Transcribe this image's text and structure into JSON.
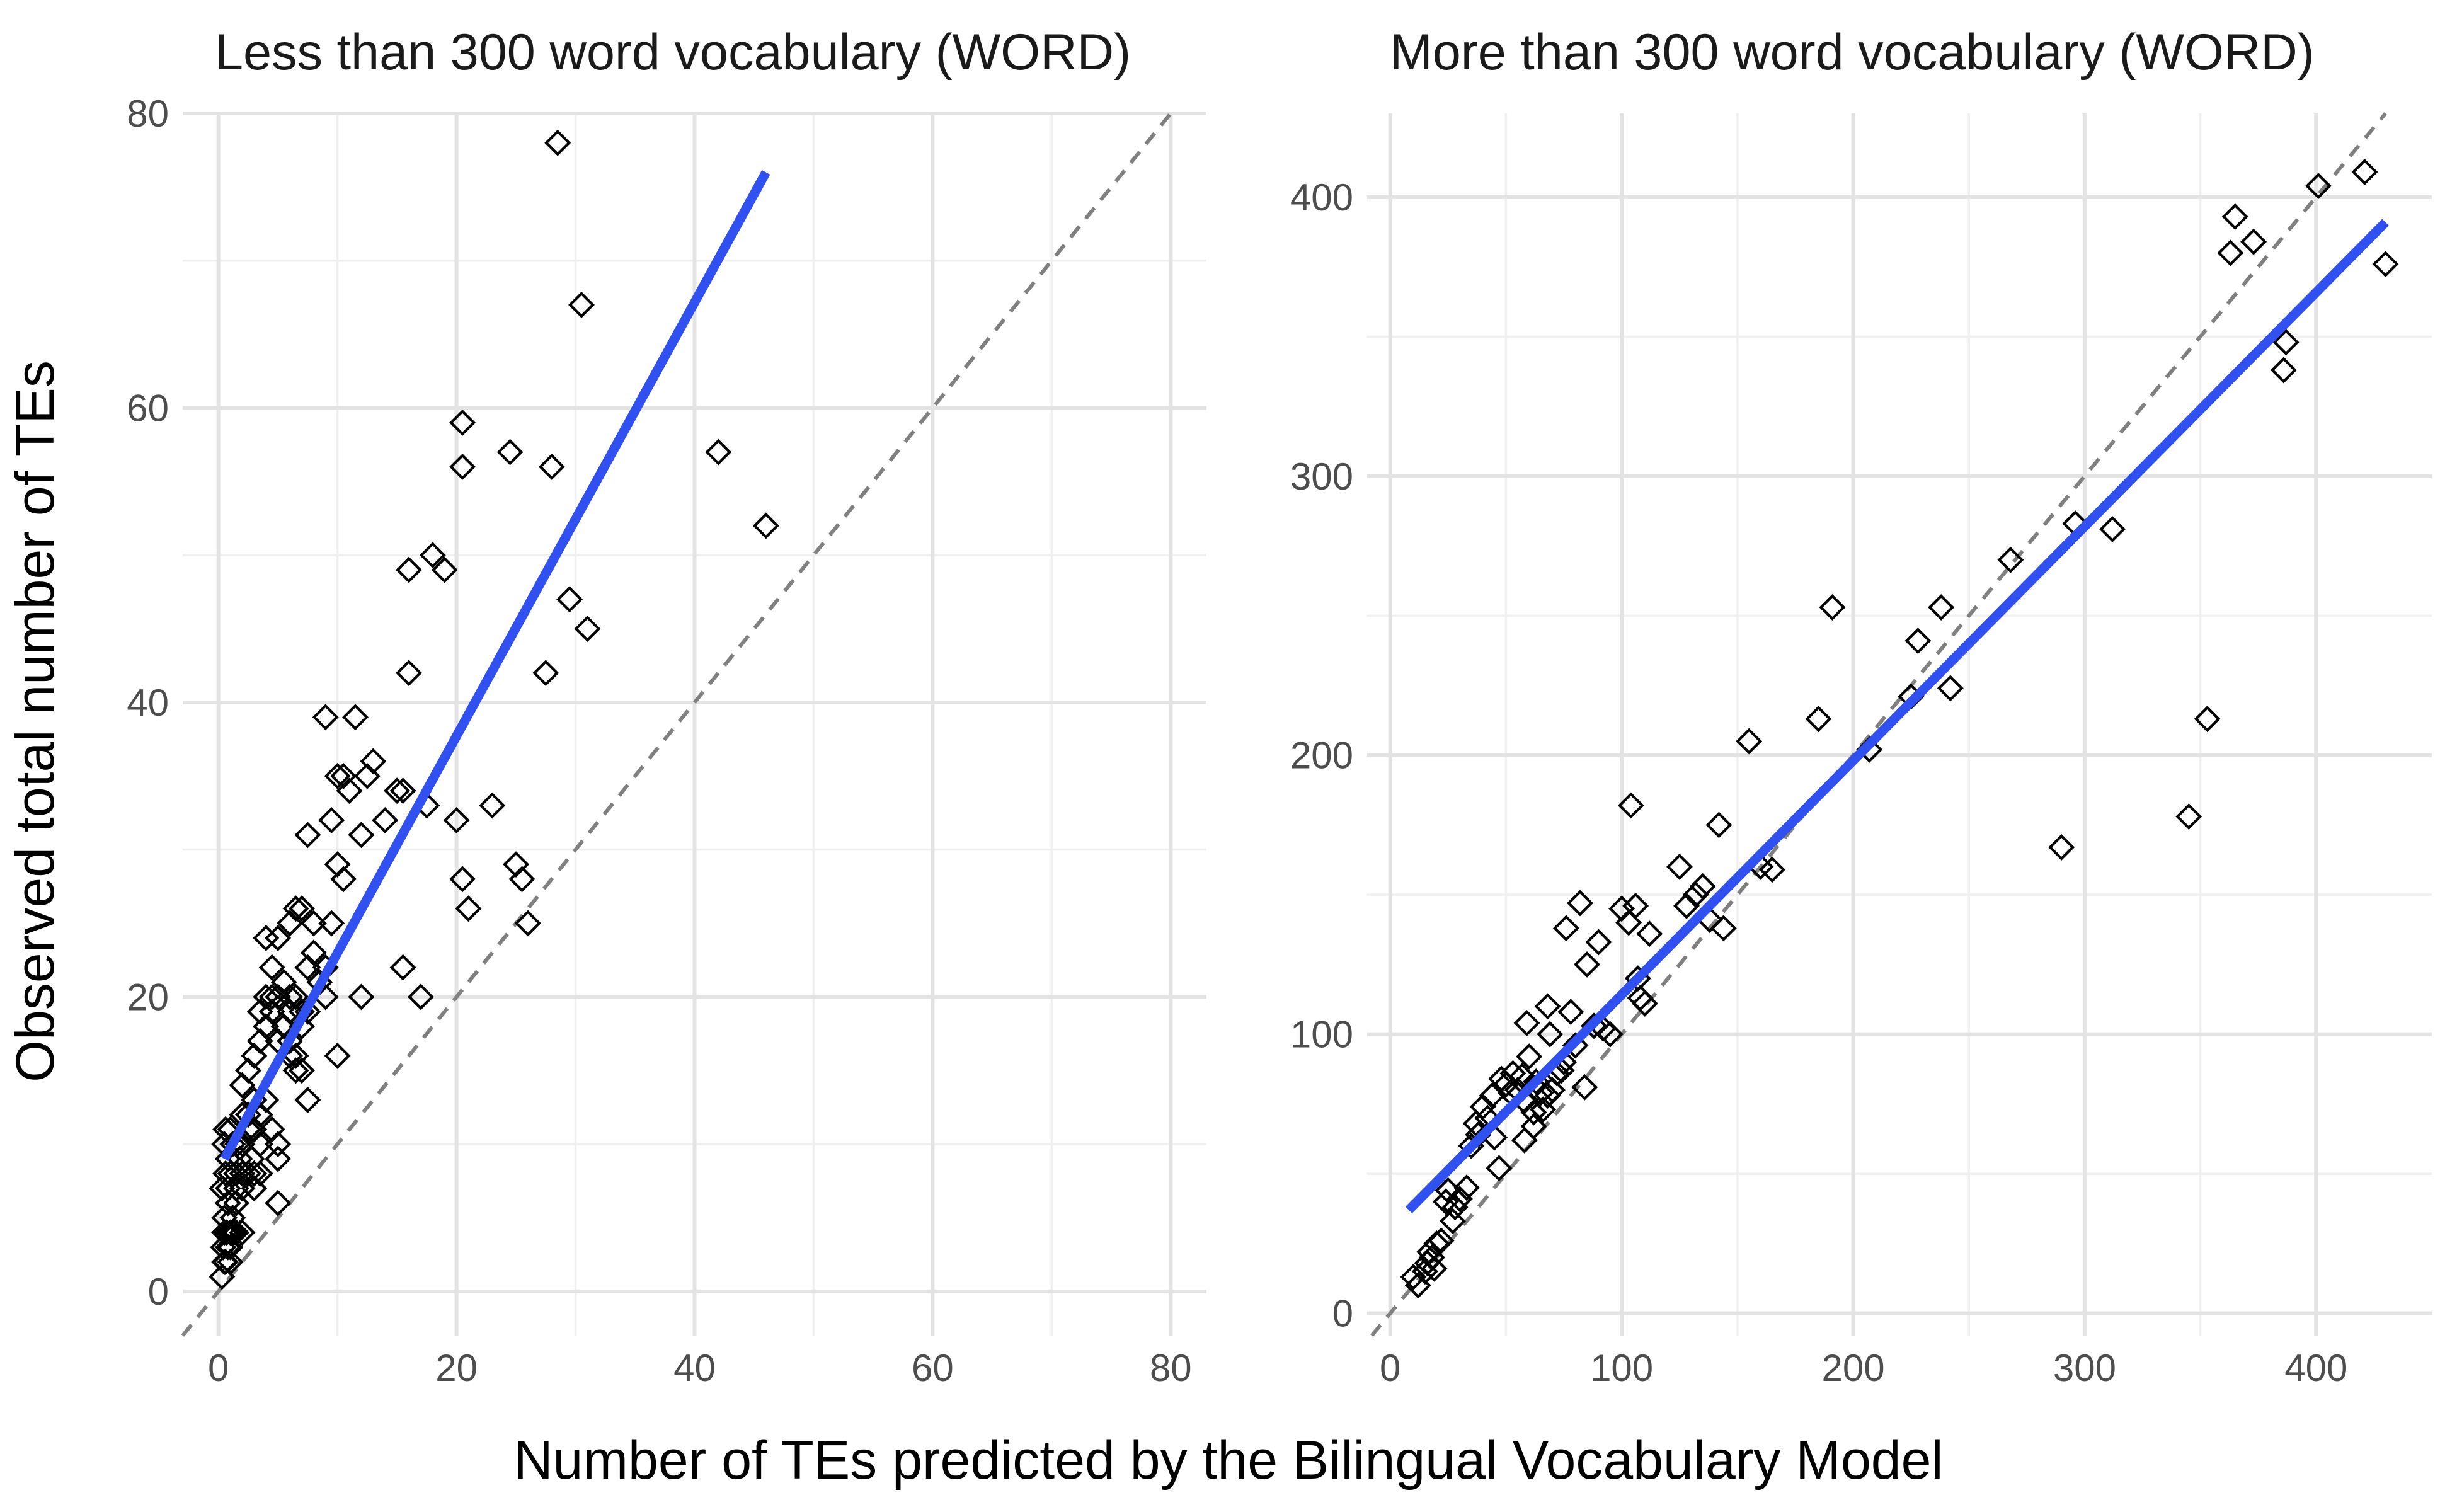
{
  "figure": {
    "x_axis_title": "Number of TEs predicted by the Bilingual Vocabulary Model",
    "y_axis_title": "Observed total number of TEs"
  },
  "colors": {
    "fit_line": "#3050f0",
    "identity_line": "#808080",
    "points": "#000000",
    "grid": "#e3e3e3"
  },
  "chart_data": [
    {
      "type": "scatter",
      "title": "Less than 300 word vocabulary (WORD)",
      "xlim": [
        -3,
        83
      ],
      "ylim": [
        -3,
        80
      ],
      "x_ticks": [
        0,
        20,
        40,
        60,
        80
      ],
      "y_ticks": [
        0,
        20,
        40,
        60,
        80
      ],
      "x_minor": [
        10,
        30,
        50,
        70
      ],
      "y_minor": [
        10,
        30,
        50,
        70
      ],
      "marker": "hollow-diamond",
      "reference_line": {
        "type": "identity",
        "style": "dashed"
      },
      "fit_line": {
        "from": [
          0.5,
          9
        ],
        "to": [
          46,
          76
        ]
      },
      "points": [
        [
          0.3,
          1
        ],
        [
          0.5,
          2
        ],
        [
          0.6,
          2
        ],
        [
          0.8,
          3
        ],
        [
          1,
          2
        ],
        [
          0.4,
          3
        ],
        [
          0.5,
          4
        ],
        [
          0.7,
          4
        ],
        [
          1,
          4
        ],
        [
          1.3,
          4
        ],
        [
          0.5,
          5
        ],
        [
          0.8,
          6
        ],
        [
          1.2,
          5
        ],
        [
          1.5,
          6
        ],
        [
          0.3,
          7
        ],
        [
          0.6,
          8
        ],
        [
          1,
          8
        ],
        [
          1.5,
          8
        ],
        [
          2,
          8
        ],
        [
          2.5,
          8
        ],
        [
          3,
          8
        ],
        [
          0.5,
          10
        ],
        [
          0.8,
          9
        ],
        [
          1.2,
          10
        ],
        [
          1.6,
          10
        ],
        [
          2,
          10
        ],
        [
          2.5,
          11
        ],
        [
          3,
          11
        ],
        [
          3.5,
          10
        ],
        [
          0.6,
          11
        ],
        [
          1,
          11
        ],
        [
          2,
          12
        ],
        [
          2.5,
          12
        ],
        [
          3,
          13
        ],
        [
          3.5,
          12
        ],
        [
          4,
          13
        ],
        [
          4.5,
          11
        ],
        [
          5,
          10
        ],
        [
          5,
          9
        ],
        [
          1.5,
          7
        ],
        [
          2,
          7
        ],
        [
          3,
          7
        ],
        [
          3.5,
          8
        ],
        [
          1,
          3
        ],
        [
          1.5,
          4
        ],
        [
          2,
          4
        ],
        [
          0.8,
          7
        ],
        [
          1.8,
          9
        ],
        [
          2.8,
          9
        ],
        [
          2,
          14
        ],
        [
          3,
          16
        ],
        [
          3.5,
          17
        ],
        [
          4,
          18
        ],
        [
          4.5,
          19
        ],
        [
          5,
          20
        ],
        [
          5.5,
          18
        ],
        [
          6,
          17
        ],
        [
          6.5,
          16
        ],
        [
          7,
          15
        ],
        [
          2.5,
          15
        ],
        [
          3.5,
          19
        ],
        [
          4,
          20
        ],
        [
          4.5,
          20
        ],
        [
          5,
          17
        ],
        [
          6,
          19
        ],
        [
          6,
          16
        ],
        [
          6.5,
          15
        ],
        [
          7.5,
          13
        ],
        [
          5,
          6
        ],
        [
          4.5,
          22
        ],
        [
          5,
          24
        ],
        [
          6,
          25
        ],
        [
          7,
          26
        ],
        [
          7.5,
          22
        ],
        [
          8,
          25
        ],
        [
          8,
          23
        ],
        [
          8.5,
          21
        ],
        [
          9,
          22
        ],
        [
          6,
          20
        ],
        [
          6.5,
          20
        ],
        [
          7,
          19
        ],
        [
          7,
          18
        ],
        [
          7.5,
          19
        ],
        [
          5.5,
          21
        ],
        [
          4,
          24
        ],
        [
          6.5,
          26
        ],
        [
          7.5,
          31
        ],
        [
          9,
          39
        ],
        [
          9.5,
          32
        ],
        [
          10,
          35
        ],
        [
          10.5,
          35
        ],
        [
          11,
          34
        ],
        [
          11.5,
          39
        ],
        [
          12,
          31
        ],
        [
          12.5,
          35
        ],
        [
          13,
          36
        ],
        [
          14,
          32
        ],
        [
          15,
          34
        ],
        [
          15.5,
          34
        ],
        [
          10,
          29
        ],
        [
          10.5,
          28
        ],
        [
          9.5,
          25
        ],
        [
          10,
          16
        ],
        [
          12,
          20
        ],
        [
          16,
          42
        ],
        [
          16,
          49
        ],
        [
          17,
          20
        ],
        [
          17.5,
          33
        ],
        [
          18,
          50
        ],
        [
          19,
          49
        ],
        [
          20,
          32
        ],
        [
          20.5,
          28
        ],
        [
          21,
          26
        ],
        [
          15.5,
          22
        ],
        [
          20.5,
          56
        ],
        [
          20.5,
          59
        ],
        [
          23,
          33
        ],
        [
          24.5,
          57
        ],
        [
          25,
          29
        ],
        [
          25.5,
          28
        ],
        [
          26,
          25
        ],
        [
          27.5,
          42
        ],
        [
          28,
          56
        ],
        [
          28.5,
          78
        ],
        [
          29.5,
          47
        ],
        [
          30.5,
          67
        ],
        [
          31,
          45
        ],
        [
          42,
          57
        ],
        [
          46,
          52
        ],
        [
          9,
          20
        ]
      ]
    },
    {
      "type": "scatter",
      "title": "More than 300 word vocabulary (WORD)",
      "xlim": [
        -10,
        450
      ],
      "ylim": [
        -8,
        430
      ],
      "x_ticks": [
        0,
        100,
        200,
        300,
        400
      ],
      "y_ticks": [
        0,
        100,
        200,
        300,
        400
      ],
      "x_minor": [
        50,
        150,
        250,
        350
      ],
      "y_minor": [
        50,
        150,
        250,
        350
      ],
      "marker": "hollow-diamond",
      "reference_line": {
        "type": "identity",
        "style": "dashed"
      },
      "fit_line": {
        "from": [
          8,
          37
        ],
        "to": [
          430,
          391
        ]
      },
      "points": [
        [
          10,
          13
        ],
        [
          12,
          10
        ],
        [
          15,
          15
        ],
        [
          16,
          18
        ],
        [
          17,
          22
        ],
        [
          18,
          20
        ],
        [
          19,
          16
        ],
        [
          20,
          25
        ],
        [
          22,
          26
        ],
        [
          24,
          40
        ],
        [
          25,
          44
        ],
        [
          27,
          33
        ],
        [
          28,
          38
        ],
        [
          30,
          41
        ],
        [
          33,
          45
        ],
        [
          35,
          60
        ],
        [
          37,
          68
        ],
        [
          38,
          64
        ],
        [
          40,
          74
        ],
        [
          42,
          70
        ],
        [
          44,
          78
        ],
        [
          45,
          63
        ],
        [
          47,
          52
        ],
        [
          48,
          84
        ],
        [
          50,
          82
        ],
        [
          52,
          79
        ],
        [
          53,
          86
        ],
        [
          55,
          80
        ],
        [
          57,
          85
        ],
        [
          58,
          62
        ],
        [
          59,
          104
        ],
        [
          60,
          92
        ],
        [
          62,
          67
        ],
        [
          63,
          83
        ],
        [
          65,
          79
        ],
        [
          66,
          73
        ],
        [
          68,
          110
        ],
        [
          69,
          100
        ],
        [
          70,
          80
        ],
        [
          72,
          86
        ],
        [
          75,
          90
        ],
        [
          76,
          138
        ],
        [
          78,
          108
        ],
        [
          80,
          96
        ],
        [
          82,
          147
        ],
        [
          84,
          81
        ],
        [
          85,
          125
        ],
        [
          88,
          103
        ],
        [
          90,
          133
        ],
        [
          95,
          100
        ],
        [
          100,
          145
        ],
        [
          103,
          140
        ],
        [
          104,
          182
        ],
        [
          106,
          146
        ],
        [
          107,
          120
        ],
        [
          108,
          113
        ],
        [
          110,
          111
        ],
        [
          112,
          136
        ],
        [
          125,
          160
        ],
        [
          128,
          146
        ],
        [
          132,
          150
        ],
        [
          135,
          153
        ],
        [
          138,
          141
        ],
        [
          142,
          175
        ],
        [
          144,
          138
        ],
        [
          155,
          205
        ],
        [
          160,
          160
        ],
        [
          165,
          159
        ],
        [
          185,
          213
        ],
        [
          191,
          253
        ],
        [
          207,
          202
        ],
        [
          225,
          221
        ],
        [
          228,
          241
        ],
        [
          238,
          253
        ],
        [
          242,
          224
        ],
        [
          268,
          270
        ],
        [
          290,
          167
        ],
        [
          296,
          283
        ],
        [
          312,
          281
        ],
        [
          345,
          178
        ],
        [
          353,
          213
        ],
        [
          363,
          380
        ],
        [
          365,
          393
        ],
        [
          373,
          384
        ],
        [
          386,
          338
        ],
        [
          387,
          348
        ],
        [
          401,
          404
        ],
        [
          421,
          409
        ],
        [
          430,
          376
        ],
        [
          58,
          76
        ],
        [
          62,
          72
        ],
        [
          68,
          78
        ],
        [
          74,
          87
        ],
        [
          92,
          102
        ]
      ]
    }
  ]
}
